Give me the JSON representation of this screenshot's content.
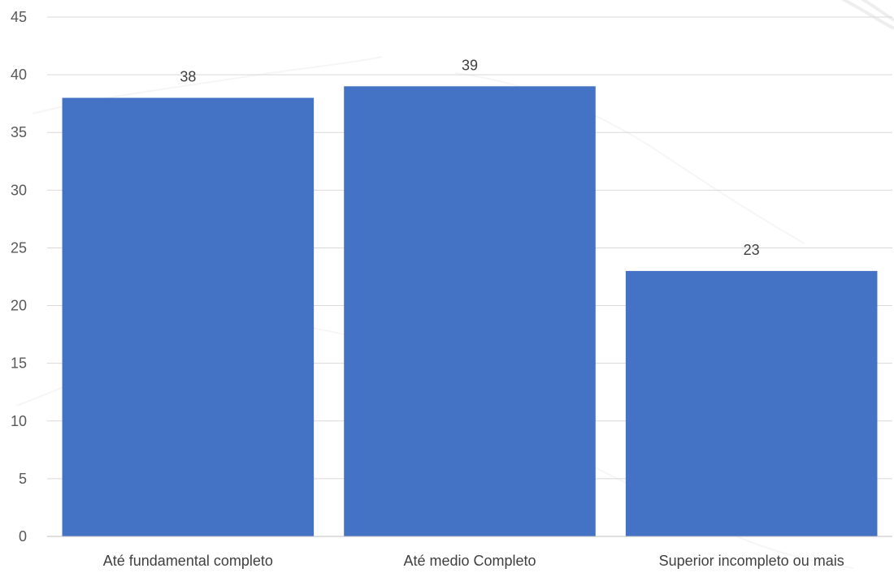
{
  "chart_data": {
    "type": "bar",
    "categories": [
      "Até fundamental completo",
      "Até medio Completo",
      "Superior incompleto ou mais"
    ],
    "values": [
      38,
      39,
      23
    ],
    "data_labels": [
      "38",
      "39",
      "23"
    ],
    "ylim": [
      0,
      45
    ],
    "yticks": [
      0,
      5,
      10,
      15,
      20,
      25,
      30,
      35,
      40,
      45
    ],
    "grid": true,
    "legend": "none",
    "colors": {
      "bar": "#4472C4",
      "grid": "#D9D9D9",
      "axis": "#BFBFBF",
      "background": "#FFFFFF"
    }
  }
}
